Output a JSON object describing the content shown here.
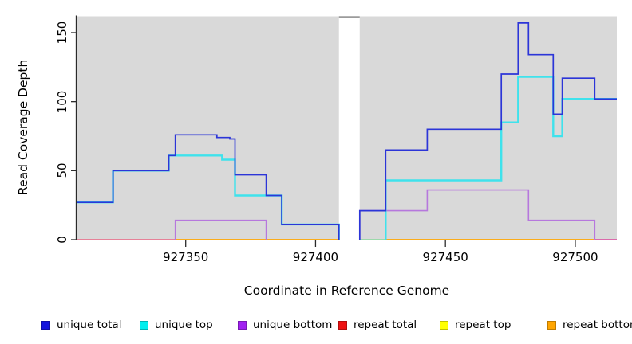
{
  "chart_data": {
    "type": "line",
    "subtype": "step-coverage-plot",
    "title": "",
    "xlabel": "Coordinate in Reference Genome",
    "ylabel": "Read Coverage Depth",
    "xlim": [
      927308,
      927516
    ],
    "ylim": [
      0,
      160
    ],
    "xticks": [
      927350,
      927400,
      927450,
      927500
    ],
    "yticks": [
      0,
      50,
      100,
      150
    ],
    "grid": false,
    "panel_bg": "#d9d9d9",
    "gap_region": {
      "from": 927409,
      "to": 927417,
      "color": "#ffffff",
      "top_edge_color": "#9b9b9b"
    },
    "legend_position": "bottom",
    "series": [
      {
        "name": "unique total",
        "legend_color": "#1212dd",
        "line_color": "#2c35d8",
        "line_width": 1.7,
        "draw": true,
        "segments": [
          [
            [
              927308,
              27
            ],
            [
              927322,
              27
            ],
            [
              927322,
              50
            ],
            [
              927343.5,
              50
            ],
            [
              927343.5,
              61
            ],
            [
              927346,
              61
            ],
            [
              927346,
              76
            ],
            [
              927362,
              76
            ],
            [
              927362,
              74
            ],
            [
              927367,
              74
            ],
            [
              927367,
              73
            ],
            [
              927369,
              73
            ],
            [
              927369,
              47
            ],
            [
              927381,
              47
            ],
            [
              927381,
              32
            ],
            [
              927387,
              32
            ],
            [
              927387,
              11
            ],
            [
              927409,
              11
            ],
            [
              927409,
              0
            ]
          ],
          [
            [
              927417,
              0
            ],
            [
              927417,
              21
            ],
            [
              927427,
              21
            ],
            [
              927427,
              65
            ],
            [
              927443,
              65
            ],
            [
              927443,
              80
            ],
            [
              927471.5,
              80
            ],
            [
              927471.5,
              120
            ],
            [
              927478,
              120
            ],
            [
              927478,
              157
            ],
            [
              927482,
              157
            ],
            [
              927482,
              134
            ],
            [
              927491.5,
              134
            ],
            [
              927491.5,
              91
            ],
            [
              927495,
              91
            ],
            [
              927495,
              117
            ],
            [
              927507.5,
              117
            ],
            [
              927507.5,
              102
            ],
            [
              927516,
              102
            ]
          ]
        ]
      },
      {
        "name": "unique top",
        "legend_color": "#00eeee",
        "line_color": "#3fe2ec",
        "line_width": 2.4,
        "draw": true,
        "segments": [
          [
            [
              927308,
              27
            ],
            [
              927322,
              27
            ],
            [
              927322,
              50
            ],
            [
              927343.5,
              50
            ],
            [
              927343.5,
              61
            ],
            [
              927364,
              61
            ],
            [
              927364,
              58
            ],
            [
              927369,
              58
            ],
            [
              927369,
              32
            ],
            [
              927387,
              32
            ],
            [
              927387,
              11
            ],
            [
              927409,
              11
            ],
            [
              927409,
              0
            ]
          ],
          [
            [
              927427,
              0
            ],
            [
              927427,
              43
            ],
            [
              927471.5,
              43
            ],
            [
              927471.5,
              85
            ],
            [
              927478,
              85
            ],
            [
              927478,
              118
            ],
            [
              927491.5,
              118
            ],
            [
              927491.5,
              75
            ],
            [
              927495,
              75
            ],
            [
              927495,
              102
            ],
            [
              927516,
              102
            ]
          ]
        ]
      },
      {
        "name": "unique bottom",
        "legend_color": "#a020f0",
        "line_color": "#b678dd",
        "line_width": 1.6,
        "draw": true,
        "segments": [
          [
            [
              927346,
              0
            ],
            [
              927346,
              14
            ],
            [
              927381,
              14
            ],
            [
              927381,
              0
            ]
          ],
          [
            [
              927417,
              0
            ],
            [
              927417,
              21
            ],
            [
              927443,
              21
            ],
            [
              927443,
              36
            ],
            [
              927482,
              36
            ],
            [
              927482,
              14
            ],
            [
              927507.5,
              14
            ],
            [
              927507.5,
              0
            ]
          ]
        ]
      },
      {
        "name": "repeat total",
        "legend_color": "#ee1111",
        "line_color": "#e8748f",
        "line_width": 1.6,
        "draw": false,
        "segments": [
          [
            [
              927308,
              0
            ],
            [
              927409,
              0
            ]
          ],
          [
            [
              927417,
              0
            ],
            [
              927516,
              0
            ]
          ]
        ]
      },
      {
        "name": "repeat top",
        "legend_color": "#ffff00",
        "line_color": "#ffff00",
        "line_width": 1.6,
        "draw": false,
        "segments": [
          [
            [
              927308,
              0
            ],
            [
              927409,
              0
            ]
          ],
          [
            [
              927417,
              0
            ],
            [
              927516,
              0
            ]
          ]
        ]
      },
      {
        "name": "repeat bottom",
        "legend_color": "#ffa500",
        "line_color": "#ffa500",
        "line_width": 1.6,
        "draw": false,
        "segments": [
          [
            [
              927308,
              0
            ],
            [
              927409,
              0
            ]
          ],
          [
            [
              927417,
              0
            ],
            [
              927516,
              0
            ]
          ]
        ]
      }
    ],
    "baseline_segments": [
      {
        "from": 927308,
        "to": 927346,
        "color": "#e8748f"
      },
      {
        "from": 927346,
        "to": 927409,
        "color": "#ffa500"
      },
      {
        "from": 927417,
        "to": 927427,
        "color": "#93d9a4"
      },
      {
        "from": 927427,
        "to": 927507.5,
        "color": "#ffa500"
      },
      {
        "from": 927507.5,
        "to": 927516,
        "color": "#db5ba4"
      }
    ]
  },
  "axes": {
    "x_title": "Coordinate in Reference Genome",
    "y_title": "Read Coverage Depth"
  },
  "legend": {
    "items": [
      {
        "label": "unique total",
        "color": "#1212dd"
      },
      {
        "label": "unique top",
        "color": "#00eeee"
      },
      {
        "label": "unique bottom",
        "color": "#a020f0"
      },
      {
        "label": "repeat total",
        "color": "#ee1111"
      },
      {
        "label": "repeat top",
        "color": "#ffff00"
      },
      {
        "label": "repeat bottom",
        "color": "#ffa500"
      }
    ]
  }
}
